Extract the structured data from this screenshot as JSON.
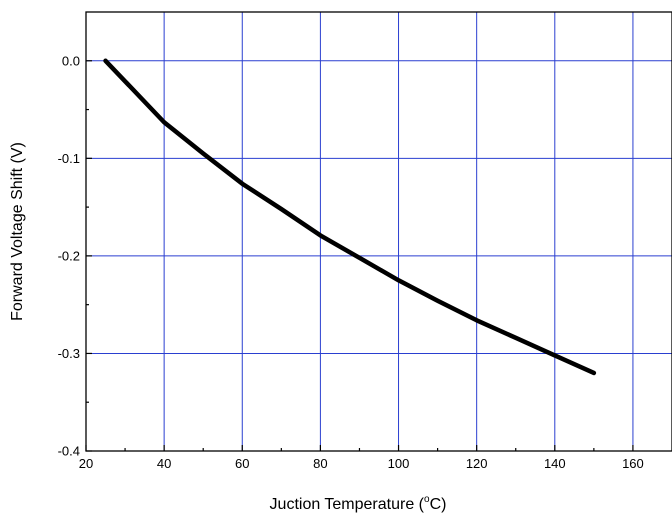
{
  "chart_data": {
    "type": "line",
    "title": "",
    "xlabel": {
      "prefix": "Juction Temperature (",
      "superscript": "o",
      "suffix": "C)"
    },
    "ylabel": "Forward Voltage Shift (V)",
    "xlim": [
      20,
      170
    ],
    "ylim": [
      -0.4,
      0.05
    ],
    "x_ticks": [
      20,
      40,
      60,
      80,
      100,
      120,
      140,
      160
    ],
    "x_tick_labels": [
      "20",
      "40",
      "60",
      "80",
      "100",
      "120",
      "140",
      "160"
    ],
    "y_ticks": [
      0.0,
      -0.1,
      -0.2,
      -0.3,
      -0.4
    ],
    "y_tick_labels": [
      "0.0",
      "-0.1",
      "-0.2",
      "-0.3",
      "-0.4"
    ],
    "grid": true,
    "legend": "none",
    "series": [
      {
        "color": "#000000",
        "x": [
          25,
          30,
          35,
          40,
          50,
          60,
          70,
          80,
          90,
          100,
          110,
          120,
          130,
          140,
          150
        ],
        "y": [
          0.0,
          -0.021,
          -0.042,
          -0.063,
          -0.095,
          -0.126,
          -0.152,
          -0.179,
          -0.202,
          -0.225,
          -0.246,
          -0.266,
          -0.284,
          -0.302,
          -0.32
        ]
      }
    ]
  },
  "colors": {
    "grid": "#2a3fd0",
    "frame": "#000000",
    "line": "#000000"
  }
}
